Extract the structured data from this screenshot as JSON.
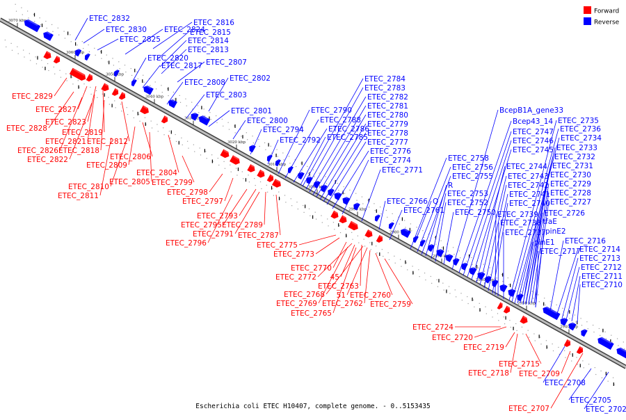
{
  "colors": {
    "forward": "#ff0000",
    "reverse": "#0000ff",
    "axis": "#808080",
    "axis_edge": "#404040",
    "text": "#000000"
  },
  "legend": [
    {
      "label": "Forward",
      "color": "#ff0000"
    },
    {
      "label": "Reverse",
      "color": "#0000ff"
    }
  ],
  "caption": "Escherichia coli ETEC H10407, complete genome. - 0..5153435",
  "ticks": [
    "3070 kbp",
    "3060 kbp",
    "3050 kbp",
    "3040 kbp",
    "3030 kbp",
    "3020 kbp",
    "3010 kbp",
    "3000 kbp",
    "2990 kbp",
    "2980 kbp",
    "2970 kbp",
    "2960 kbp",
    "2950 kbp",
    "2940 kbp"
  ],
  "reverse_labels": [
    "ETEC_2832",
    "ETEC_2830",
    "ETEC_2824",
    "ETEC_2825",
    "ETEC_2816",
    "ETEC_2815",
    "ETEC_2814",
    "ETEC_2813",
    "ETEC_2820",
    "ETEC_2817",
    "ETEC_2807",
    "ETEC_2808",
    "ETEC_2802",
    "ETEC_2803",
    "ETEC_2801",
    "ETEC_2800",
    "ETEC_2794",
    "ETEC_2792",
    "ETEC_2790",
    "ETEC_2788",
    "ETEC_2786",
    "ETEC_2785",
    "ETEC_2784",
    "ETEC_2783",
    "ETEC_2782",
    "ETEC_2781",
    "ETEC_2780",
    "ETEC_2779",
    "ETEC_2778",
    "ETEC_2777",
    "ETEC_2776",
    "ETEC_2774",
    "ETEC_2771",
    "ETEC_2766",
    "Q",
    "ETEC_2761",
    "ETEC_2758",
    "ETEC_2756",
    "ETEC_2755",
    "R",
    "ETEC_2753",
    "ETEC_2752",
    "ETEC_2750",
    "BcepB1A_gene33",
    "Bcep43_14",
    "ETEC_2747",
    "ETEC_2746",
    "ETEC_2745",
    "ETEC_2744",
    "ETEC_2743",
    "ETEC_2742",
    "ETEC_2741",
    "ETEC_2740",
    "ETEC_2739",
    "ETEC_2738",
    "ETEC_2737",
    "ETEC_2735",
    "ETEC_2736",
    "ETEC_2734",
    "ETEC_2733",
    "ETEC_2732",
    "ETEC_2731",
    "ETEC_2730",
    "ETEC_2729",
    "ETEC_2728",
    "ETEC_2727",
    "ETEC_2726",
    "tfaE",
    "pinE1",
    "pinE2",
    "ETEC_2717",
    "ETEC_2716",
    "ETEC_2714",
    "ETEC_2713",
    "ETEC_2712",
    "ETEC_2711",
    "ETEC_2710",
    "ETEC_2708",
    "ETEC_2705",
    "ETEC_2702"
  ],
  "forward_labels": [
    "ETEC_2829",
    "ETEC_2827",
    "ETEC_2828",
    "ETEC_2823",
    "ETEC_2819",
    "ETEC_2821",
    "ETEC_2812",
    "ETEC_2826",
    "ETEC_2818",
    "ETEC_2822",
    "ETEC_2806",
    "ETEC_2809",
    "ETEC_2804",
    "ETEC_2805",
    "ETEC_2810",
    "ETEC_2799",
    "ETEC_2811",
    "ETEC_2798",
    "ETEC_2797",
    "ETEC_2793",
    "ETEC_2795",
    "ETEC_2789",
    "ETEC_2791",
    "ETEC_2787",
    "ETEC_2796",
    "ETEC_2775",
    "ETEC_2773",
    "ETEC_2770",
    "ETEC_2772",
    "45",
    "ETEC_2763",
    "ETEC_2768",
    "51",
    "ETEC_2760",
    "ETEC_2769",
    "ETEC_2762",
    "ETEC_2759",
    "ETEC_2765",
    "ETEC_2724",
    "ETEC_2720",
    "ETEC_2719",
    "ETEC_2715",
    "ETEC_2718",
    "ETEC_2709",
    "ETEC_2707"
  ]
}
